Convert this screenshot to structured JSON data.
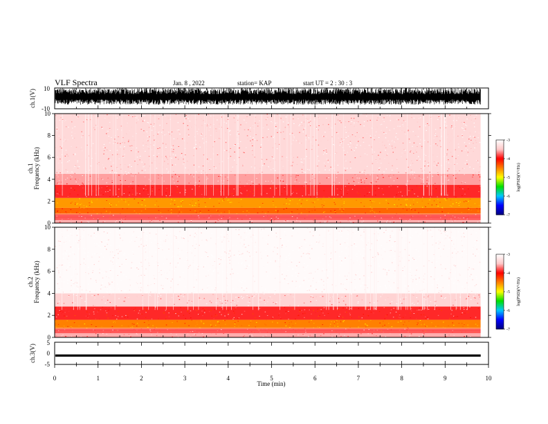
{
  "header": {
    "title": "VLF Spectra",
    "date": "Jan. 8 , 2022",
    "station": "station= KAP",
    "start_ut": "start UT =  2 : 30 : 3"
  },
  "chart_data": [
    {
      "type": "line",
      "name": "ch1-waveform",
      "ylabel": "ch.1(V)",
      "ylim": [
        -10,
        10
      ],
      "yticks": [
        "10",
        "-10"
      ],
      "xlim": [
        0,
        10
      ],
      "x_extent": 9.82,
      "trace": "dense noise filling roughly -6 V to +10 V"
    },
    {
      "type": "heatmap",
      "name": "ch1-spectrogram",
      "ylabel": "ch.1\nFrequency (kHz)",
      "ylim": [
        0,
        10
      ],
      "yticks": [
        "0",
        "2",
        "4",
        "6",
        "8",
        "10"
      ],
      "xlim": [
        0,
        10
      ],
      "x_extent": 9.82,
      "bands": [
        {
          "f_from": 0.0,
          "f_to": 0.3,
          "level": -3.6
        },
        {
          "f_from": 0.3,
          "f_to": 0.8,
          "level": -3.9
        },
        {
          "f_from": 0.8,
          "f_to": 1.4,
          "level": -4.4
        },
        {
          "f_from": 1.4,
          "f_to": 2.3,
          "level": -4.6
        },
        {
          "f_from": 2.3,
          "f_to": 3.5,
          "level": -3.9
        },
        {
          "f_from": 3.5,
          "f_to": 4.5,
          "level": -3.6
        },
        {
          "f_from": 4.5,
          "f_to": 10.0,
          "level": -3.35
        }
      ]
    },
    {
      "type": "heatmap",
      "name": "ch2-spectrogram",
      "ylabel": "ch.2\nFrequency (kHz)",
      "ylim": [
        0,
        10
      ],
      "yticks": [
        "0",
        "2",
        "4",
        "6",
        "8",
        "10"
      ],
      "xlim": [
        0,
        10
      ],
      "x_extent": 9.82,
      "bands": [
        {
          "f_from": 0.0,
          "f_to": 0.4,
          "level": -3.6
        },
        {
          "f_from": 0.4,
          "f_to": 0.8,
          "level": -3.9
        },
        {
          "f_from": 0.8,
          "f_to": 1.6,
          "level": -4.5
        },
        {
          "f_from": 1.6,
          "f_to": 2.8,
          "level": -3.9
        },
        {
          "f_from": 2.8,
          "f_to": 4.0,
          "level": -3.4
        },
        {
          "f_from": 4.0,
          "f_to": 10.0,
          "level": -3.05
        }
      ]
    },
    {
      "type": "line",
      "name": "ch3-waveform",
      "ylabel": "ch.3(V)",
      "ylim": [
        -5,
        5
      ],
      "yticks": [
        "5",
        "0",
        "-5"
      ],
      "xlim": [
        0,
        10
      ],
      "x_extent": 9.82,
      "trace": "thin band centred near -1 V"
    }
  ],
  "x_axis": {
    "label": "Time (min)",
    "ticks": [
      "0",
      "1",
      "2",
      "3",
      "4",
      "5",
      "6",
      "7",
      "8",
      "9",
      "10"
    ]
  },
  "colorbar": {
    "label": "log(PSD)(V²/Hz)",
    "range": [
      -7,
      -3
    ],
    "ticks": [
      "-3",
      "-4",
      "-5",
      "-6",
      "-7"
    ],
    "colors": [
      "#000080",
      "#0000ff",
      "#00c8ff",
      "#00e000",
      "#ffff00",
      "#ff8000",
      "#ff0000",
      "#ffc8c8",
      "#ffffff"
    ]
  }
}
